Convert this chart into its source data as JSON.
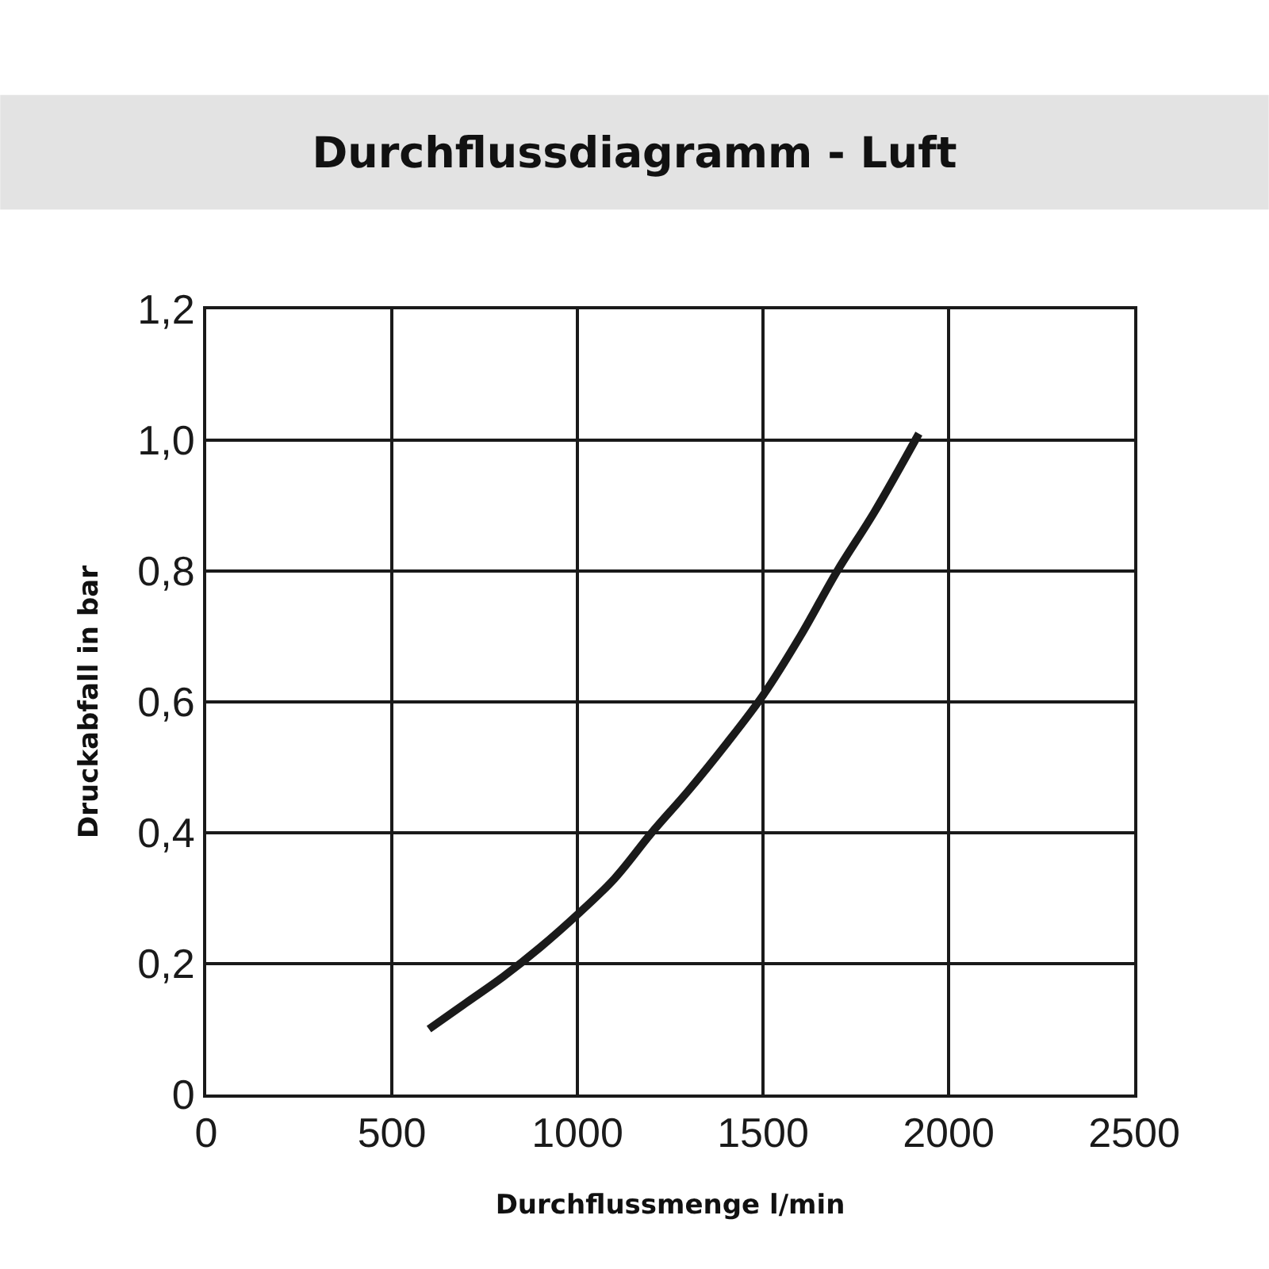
{
  "chart_data": {
    "type": "line",
    "title": "Durchflussdiagramm - Luft",
    "xlabel": "Durchflussmenge l/min",
    "ylabel": "Druckabfall in bar",
    "x": [
      600,
      700,
      800,
      900,
      1000,
      1100,
      1200,
      1300,
      1400,
      1500,
      1600,
      1700,
      1800,
      1920
    ],
    "series": [
      {
        "color": "#1a1a1a",
        "values": [
          0.1,
          0.14,
          0.18,
          0.225,
          0.275,
          0.33,
          0.4,
          0.465,
          0.535,
          0.61,
          0.7,
          0.8,
          0.89,
          1.01
        ]
      }
    ],
    "xlim": [
      0,
      2500
    ],
    "xticks": [
      0,
      500,
      1000,
      1500,
      2000,
      2500
    ],
    "ylim": [
      0,
      1.2
    ],
    "yticks": [
      0,
      {
        "value": 0.2,
        "label": "0,2"
      },
      {
        "value": 0.4,
        "label": "0,4"
      },
      {
        "value": 0.6,
        "label": "0,6"
      },
      {
        "value": 0.8,
        "label": "0,8"
      },
      {
        "value": 1.0,
        "label": "1,0"
      },
      {
        "value": 1.2,
        "label": "1,2"
      }
    ],
    "grid": true,
    "marker": "none",
    "line_style": "solid"
  }
}
